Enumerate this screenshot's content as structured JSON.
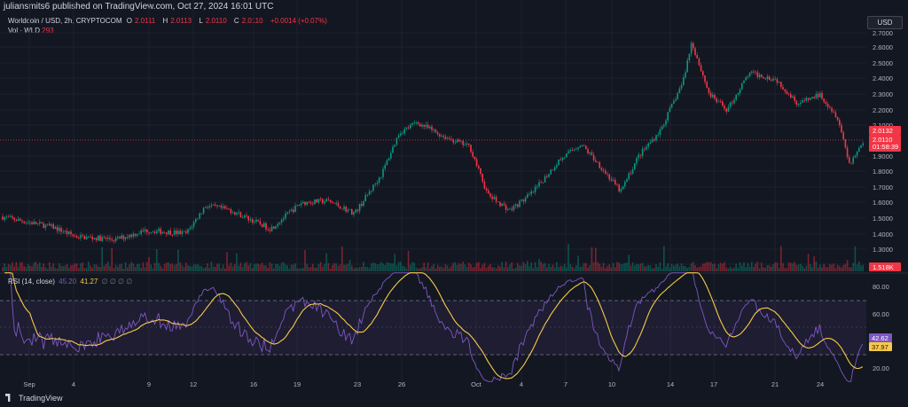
{
  "header": {
    "published_by": "juliansmits6 published on TradingView.com, Oct 27, 2024 16:01 UTC"
  },
  "legend": {
    "symbol": "Worldcoin / USD, 2h, CRYPTOCOM",
    "open_label": "O",
    "open_value": "2.0111",
    "high_label": "H",
    "high_value": "2.0113",
    "low_label": "L",
    "low_value": "2.0110",
    "close_label": "C",
    "close_value": "2.0110",
    "change": "+0.0014 (+0.07%)",
    "vol_label": "Vol · WLD",
    "vol_value": "293"
  },
  "currency_button": "USD",
  "price_scale": {
    "ticks": [
      "2.7000",
      "2.6000",
      "2.5000",
      "2.4000",
      "2.3000",
      "2.2000",
      "2.1000",
      "1.9000",
      "1.8000",
      "1.7000",
      "1.6000",
      "1.5000",
      "1.4000",
      "1.3000",
      "1.2000"
    ],
    "tag_last_price": "2.0132",
    "tag_current": "2.0110",
    "tag_countdown": "01:58:39",
    "tag_volume": "1.518K"
  },
  "rsi": {
    "label": "RSI (14, close)",
    "value1": "45.20",
    "value2": "41.27",
    "empty_values": "∅ ∅ ∅ ∅",
    "ticks": [
      "80.00",
      "60.00",
      "20.00"
    ],
    "tag_rsi": "42.62",
    "tag_ma": "37.97"
  },
  "time_axis": [
    "Sep",
    "4",
    "9",
    "12",
    "16",
    "19",
    "23",
    "26",
    "Oct",
    "4",
    "7",
    "10",
    "14",
    "17",
    "21",
    "24"
  ],
  "footer": {
    "brand": "TradingView"
  },
  "colors": {
    "up": "#089981",
    "down": "#f23645",
    "rsi": "#7e57c2",
    "rsi_ma": "#f7c948",
    "background": "#131722"
  },
  "chart_data": {
    "type": "candlestick",
    "interval": "2h",
    "price_range": [
      1.2,
      2.7
    ],
    "anchors": [
      [
        0,
        1.51
      ],
      [
        60,
        1.44
      ],
      [
        85,
        1.38
      ],
      [
        130,
        1.36
      ],
      [
        165,
        1.42
      ],
      [
        210,
        1.4
      ],
      [
        232,
        1.58
      ],
      [
        260,
        1.55
      ],
      [
        305,
        1.43
      ],
      [
        340,
        1.6
      ],
      [
        370,
        1.61
      ],
      [
        400,
        1.53
      ],
      [
        430,
        1.78
      ],
      [
        450,
        2.05
      ],
      [
        470,
        2.12
      ],
      [
        500,
        2.03
      ],
      [
        530,
        1.96
      ],
      [
        550,
        1.65
      ],
      [
        575,
        1.55
      ],
      [
        600,
        1.66
      ],
      [
        630,
        1.87
      ],
      [
        655,
        1.98
      ],
      [
        675,
        1.85
      ],
      [
        700,
        1.67
      ],
      [
        720,
        1.9
      ],
      [
        745,
        2.07
      ],
      [
        770,
        2.38
      ],
      [
        780,
        2.64
      ],
      [
        800,
        2.3
      ],
      [
        820,
        2.2
      ],
      [
        845,
        2.44
      ],
      [
        875,
        2.4
      ],
      [
        900,
        2.24
      ],
      [
        925,
        2.3
      ],
      [
        945,
        2.15
      ],
      [
        958,
        1.85
      ],
      [
        975,
        2.01
      ]
    ],
    "rsi_range": [
      20,
      80
    ],
    "rsi_bands": [
      70,
      30
    ]
  }
}
